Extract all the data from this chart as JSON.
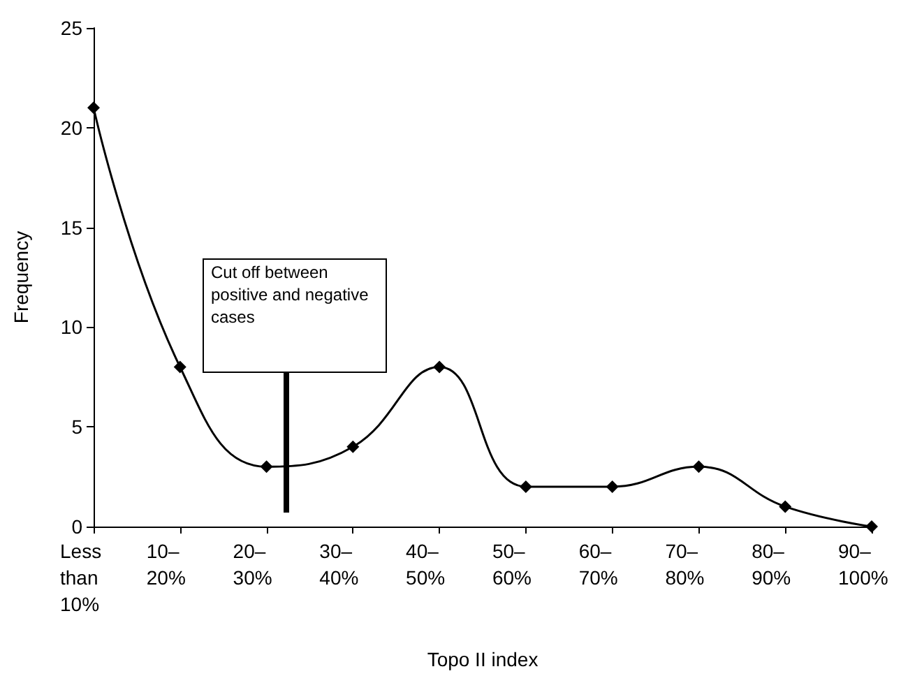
{
  "chart_data": {
    "type": "line",
    "xlabel": "Topo II index",
    "ylabel": "Frequency",
    "categories": [
      "Less than 10%",
      "10–20%",
      "20–30%",
      "30–40%",
      "40–50%",
      "50–60%",
      "60–70%",
      "70–80%",
      "80–90%",
      "90–100%"
    ],
    "values": [
      21,
      8,
      3,
      4,
      8,
      2,
      2,
      3,
      1,
      0
    ],
    "color": "#000000",
    "marker": "diamond",
    "line_style": "solid",
    "grid": false,
    "ylim": [
      0,
      25
    ],
    "yticks": [
      0,
      5,
      10,
      15,
      20,
      25
    ],
    "annotations": [
      "Cut off between positive and negative cases"
    ]
  }
}
